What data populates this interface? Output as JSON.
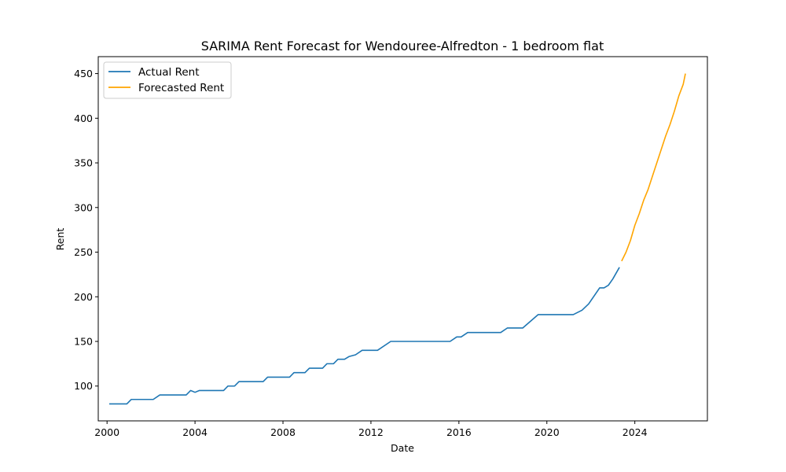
{
  "chart_data": {
    "type": "line",
    "title": "SARIMA Rent Forecast for Wendouree-Alfredton - 1 bedroom flat",
    "xlabel": "Date",
    "ylabel": "Rent",
    "xlim": [
      1999.6,
      2027.3
    ],
    "ylim": [
      61,
      469
    ],
    "x_ticks": [
      2000,
      2004,
      2008,
      2012,
      2016,
      2020,
      2024
    ],
    "y_ticks": [
      100,
      150,
      200,
      250,
      300,
      350,
      400,
      450
    ],
    "legend_position": "top-left",
    "grid": false,
    "series": [
      {
        "name": "Actual Rent",
        "color": "#1f77b4",
        "points": [
          [
            2000.1,
            80
          ],
          [
            2000.9,
            80
          ],
          [
            2001.1,
            85
          ],
          [
            2002.1,
            85
          ],
          [
            2002.4,
            90
          ],
          [
            2003.6,
            90
          ],
          [
            2003.8,
            95
          ],
          [
            2004.0,
            93
          ],
          [
            2004.2,
            95
          ],
          [
            2005.3,
            95
          ],
          [
            2005.5,
            100
          ],
          [
            2005.8,
            100
          ],
          [
            2006.0,
            105
          ],
          [
            2007.1,
            105
          ],
          [
            2007.3,
            110
          ],
          [
            2008.1,
            110
          ],
          [
            2008.3,
            110
          ],
          [
            2008.5,
            115
          ],
          [
            2009.0,
            115
          ],
          [
            2009.2,
            120
          ],
          [
            2009.8,
            120
          ],
          [
            2010.0,
            125
          ],
          [
            2010.3,
            125
          ],
          [
            2010.5,
            130
          ],
          [
            2010.8,
            130
          ],
          [
            2011.0,
            133
          ],
          [
            2011.3,
            135
          ],
          [
            2011.6,
            140
          ],
          [
            2012.3,
            140
          ],
          [
            2012.9,
            150
          ],
          [
            2015.6,
            150
          ],
          [
            2015.9,
            155
          ],
          [
            2016.1,
            155
          ],
          [
            2016.4,
            160
          ],
          [
            2017.9,
            160
          ],
          [
            2018.2,
            165
          ],
          [
            2018.9,
            165
          ],
          [
            2019.6,
            180
          ],
          [
            2021.2,
            180
          ],
          [
            2021.6,
            185
          ],
          [
            2021.9,
            192
          ],
          [
            2022.4,
            210
          ],
          [
            2022.6,
            210
          ],
          [
            2022.8,
            213
          ],
          [
            2023.0,
            220
          ],
          [
            2023.3,
            233
          ]
        ]
      },
      {
        "name": "Forecasted Rent",
        "color": "#ffa500",
        "points": [
          [
            2023.4,
            240
          ],
          [
            2023.6,
            250
          ],
          [
            2023.8,
            263
          ],
          [
            2024.0,
            280
          ],
          [
            2024.2,
            293
          ],
          [
            2024.4,
            308
          ],
          [
            2024.6,
            320
          ],
          [
            2024.8,
            335
          ],
          [
            2025.0,
            350
          ],
          [
            2025.2,
            365
          ],
          [
            2025.4,
            380
          ],
          [
            2025.6,
            393
          ],
          [
            2025.8,
            408
          ],
          [
            2026.0,
            425
          ],
          [
            2026.2,
            438
          ],
          [
            2026.3,
            450
          ]
        ]
      }
    ]
  },
  "colors": {
    "axes": "#000000",
    "background": "#ffffff"
  }
}
